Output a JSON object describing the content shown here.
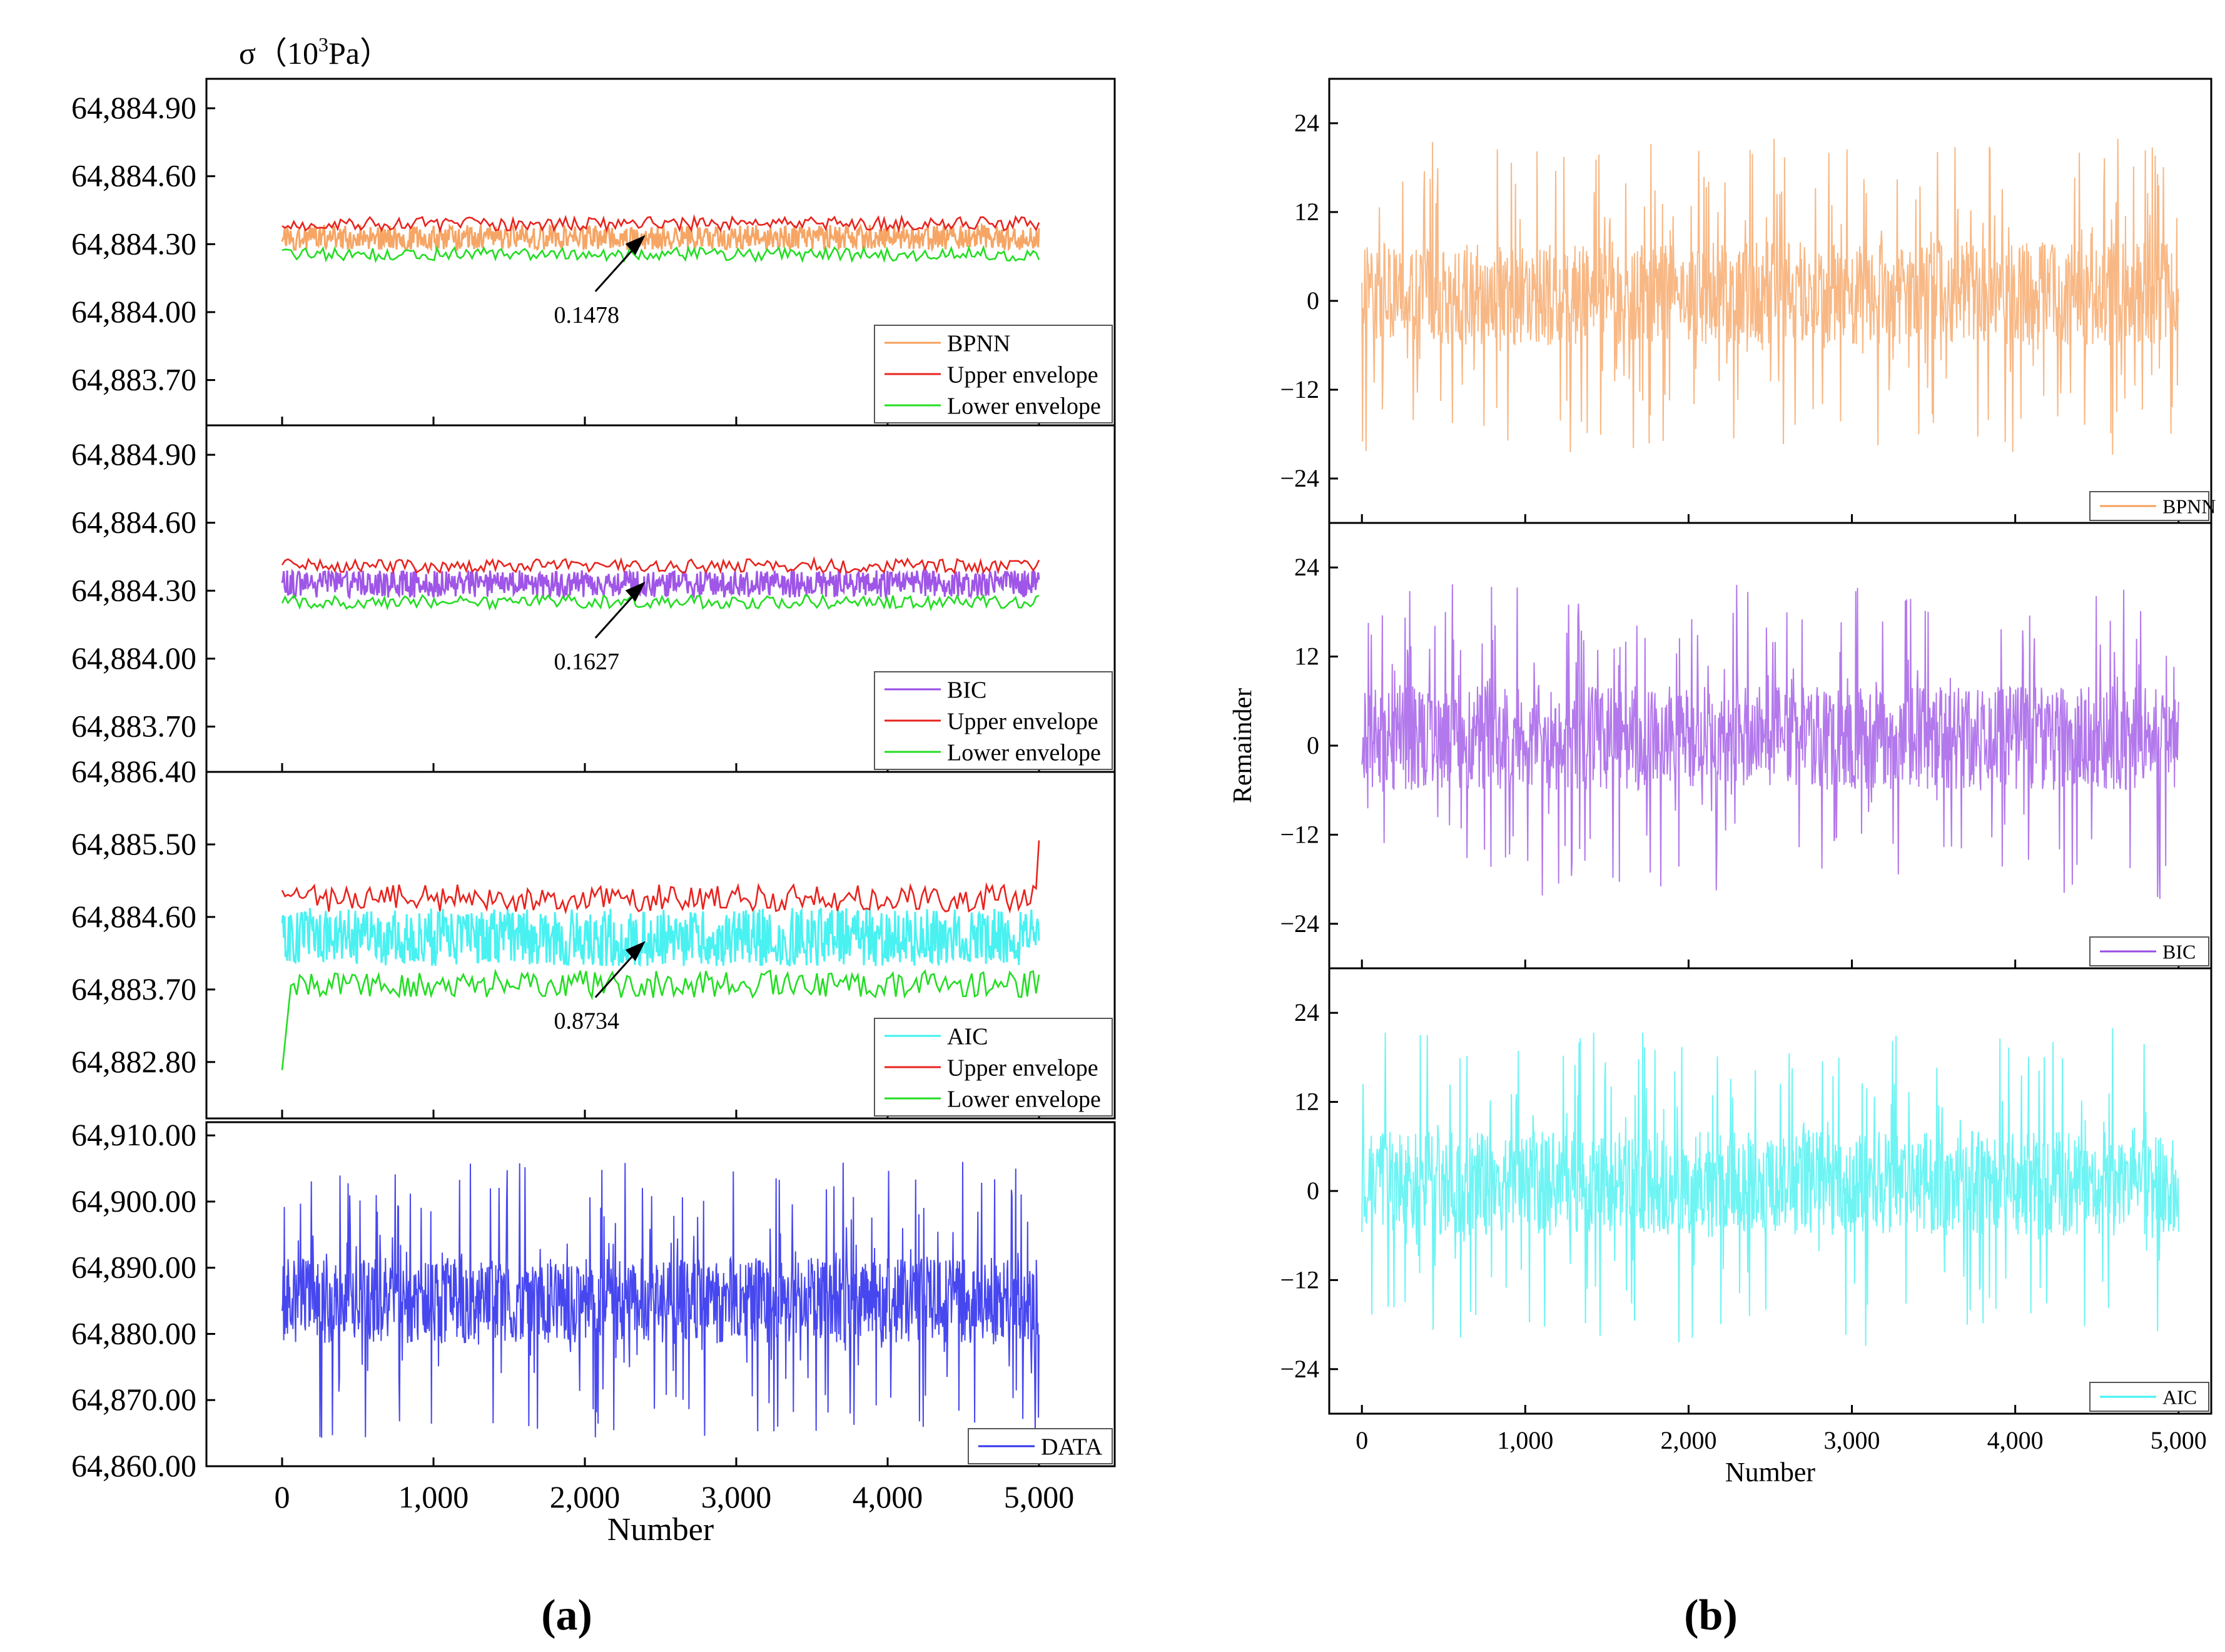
{
  "figure": {
    "label_a": "(a)",
    "label_b": "(b)"
  },
  "colors": {
    "bpnn": "#f5a05c",
    "bic": "#9a4ce6",
    "aic": "#3ff0f0",
    "data": "#3333ee",
    "upper": "#e8231e",
    "lower": "#22dd22",
    "axis": "#000000",
    "legend_border": "#555555"
  },
  "chart_data": [
    {
      "id": "a1",
      "type": "line",
      "panel": "a",
      "title": "",
      "ylabel_text": "σ（10",
      "ylabel_sup": "3",
      "ylabel_tail": "Pa）",
      "xlabel": "",
      "ylim": [
        64883.5,
        64885.03
      ],
      "yticks": [
        64883.7,
        64884.0,
        64884.3,
        64884.6,
        64884.9
      ],
      "ytick_labels": [
        "64,883.70",
        "64,884.00",
        "64,884.30",
        "64,884.60",
        "64,884.90"
      ],
      "xlim": [
        -500,
        5500
      ],
      "x_range": [
        0,
        5000
      ],
      "series": [
        {
          "name": "BPNN",
          "color_key": "bpnn",
          "role": "band",
          "center": 64884.33,
          "spread": 0.055
        },
        {
          "name": "Upper envelope",
          "color_key": "upper",
          "role": "upper",
          "center": 64884.375,
          "spread": 0.05
        },
        {
          "name": "Lower envelope",
          "color_key": "lower",
          "role": "lower",
          "center": 64884.27,
          "spread": 0.05
        }
      ],
      "annotation": {
        "text": "0.1478",
        "x": 2400,
        "y": 64884.34
      },
      "legend": [
        "BPNN",
        "Upper envelope",
        "Lower envelope"
      ],
      "legend_position": "bottom-right"
    },
    {
      "id": "a2",
      "type": "line",
      "panel": "a",
      "title": "",
      "xlabel": "",
      "ylim": [
        64883.5,
        64885.03
      ],
      "yticks": [
        64883.7,
        64884.0,
        64884.3,
        64884.6,
        64884.9
      ],
      "ytick_labels": [
        "64,883.70",
        "64,884.00",
        "64,884.30",
        "64,884.60",
        "64,884.90"
      ],
      "xlim": [
        -500,
        5500
      ],
      "x_range": [
        0,
        5000
      ],
      "series": [
        {
          "name": "BIC",
          "color_key": "bic",
          "role": "band",
          "center": 64884.33,
          "spread": 0.06
        },
        {
          "name": "Upper envelope",
          "color_key": "upper",
          "role": "upper",
          "center": 64884.395,
          "spread": 0.05
        },
        {
          "name": "Lower envelope",
          "color_key": "lower",
          "role": "lower",
          "center": 64884.265,
          "spread": 0.05
        }
      ],
      "annotation": {
        "text": "0.1627",
        "x": 2400,
        "y": 64884.34
      },
      "legend": [
        "BIC",
        "Upper envelope",
        "Lower envelope"
      ],
      "legend_position": "bottom-right"
    },
    {
      "id": "a3",
      "type": "line",
      "panel": "a",
      "title": "",
      "xlabel": "",
      "ylim": [
        64882.1,
        64886.4
      ],
      "yticks": [
        64882.8,
        64883.7,
        64884.6,
        64885.5,
        64886.4
      ],
      "ytick_labels": [
        "64,882.80",
        "64,883.70",
        "64,884.60",
        "64,885.50",
        "64,886.40"
      ],
      "xlim": [
        -500,
        5500
      ],
      "x_range": [
        0,
        5000
      ],
      "series": [
        {
          "name": "AIC",
          "color_key": "aic",
          "role": "band",
          "center": 64884.35,
          "spread": 0.36
        },
        {
          "name": "Upper envelope",
          "color_key": "upper",
          "role": "upper",
          "center": 64884.75,
          "spread": 0.28
        },
        {
          "name": "Lower envelope",
          "color_key": "lower",
          "role": "lower",
          "center": 64883.85,
          "spread": 0.28
        }
      ],
      "annotation": {
        "text": "0.8734",
        "x": 2400,
        "y": 64884.3
      },
      "legend": [
        "AIC",
        "Upper envelope",
        "Lower envelope"
      ],
      "legend_position": "bottom-right"
    },
    {
      "id": "a4",
      "type": "line",
      "panel": "a",
      "title": "",
      "xlabel": "Number",
      "ylim": [
        64860.0,
        64912.0
      ],
      "yticks": [
        64860,
        64870,
        64880,
        64890,
        64900,
        64910
      ],
      "ytick_labels": [
        "64,860.00",
        "64,870.00",
        "64,880.00",
        "64,890.00",
        "64,900.00",
        "64,910.00"
      ],
      "xlim": [
        -500,
        5500
      ],
      "xticks": [
        0,
        1000,
        2000,
        3000,
        4000,
        5000
      ],
      "xtick_labels": [
        "0",
        "1,000",
        "2,000",
        "3,000",
        "4,000",
        "5,000"
      ],
      "x_range": [
        0,
        5000
      ],
      "series": [
        {
          "name": "DATA",
          "color_key": "data",
          "role": "noise",
          "center": 64884.5,
          "core": [
            64878.5,
            64891.5
          ],
          "spike_max": 64906,
          "spike_min": 64864
        }
      ],
      "legend": [
        "DATA"
      ],
      "legend_position": "bottom-right"
    },
    {
      "id": "b1",
      "type": "line",
      "panel": "b",
      "title": "",
      "xlabel": "",
      "ylim": [
        -30,
        30
      ],
      "yticks": [
        -24,
        -12,
        0,
        12,
        24
      ],
      "ytick_labels": [
        "−24",
        "−12",
        "0",
        "12",
        "24"
      ],
      "xlim": [
        -200,
        5200
      ],
      "x_range": [
        0,
        5000
      ],
      "series": [
        {
          "name": "BPNN",
          "color_key": "bpnn",
          "role": "residual",
          "core": [
            -6,
            8
          ],
          "spike_max": 22,
          "spike_min": -21
        }
      ],
      "legend": [
        "BPNN"
      ],
      "legend_position": "bottom-right"
    },
    {
      "id": "b2",
      "type": "line",
      "panel": "b",
      "title": "",
      "ylabel": "Remainder",
      "xlabel": "",
      "ylim": [
        -30,
        30
      ],
      "yticks": [
        -24,
        -12,
        0,
        12,
        24
      ],
      "ytick_labels": [
        "−24",
        "−12",
        "0",
        "12",
        "24"
      ],
      "xlim": [
        -200,
        5200
      ],
      "x_range": [
        0,
        5000
      ],
      "series": [
        {
          "name": "BIC",
          "color_key": "bic",
          "role": "residual",
          "core": [
            -6,
            8
          ],
          "spike_max": 22,
          "spike_min": -21
        }
      ],
      "legend": [
        "BIC"
      ],
      "legend_position": "bottom-right"
    },
    {
      "id": "b3",
      "type": "line",
      "panel": "b",
      "title": "",
      "xlabel": "Number",
      "ylim": [
        -30,
        30
      ],
      "yticks": [
        -24,
        -12,
        0,
        12,
        24
      ],
      "ytick_labels": [
        "−24",
        "−12",
        "0",
        "12",
        "24"
      ],
      "xlim": [
        -200,
        5200
      ],
      "xticks": [
        0,
        1000,
        2000,
        3000,
        4000,
        5000
      ],
      "xtick_labels": [
        "0",
        "1,000",
        "2,000",
        "3,000",
        "4,000",
        "5,000"
      ],
      "x_range": [
        0,
        5000
      ],
      "series": [
        {
          "name": "AIC",
          "color_key": "aic",
          "role": "residual",
          "core": [
            -6,
            8
          ],
          "spike_max": 22,
          "spike_min": -21
        }
      ],
      "legend": [
        "AIC"
      ],
      "legend_position": "bottom-right"
    }
  ]
}
